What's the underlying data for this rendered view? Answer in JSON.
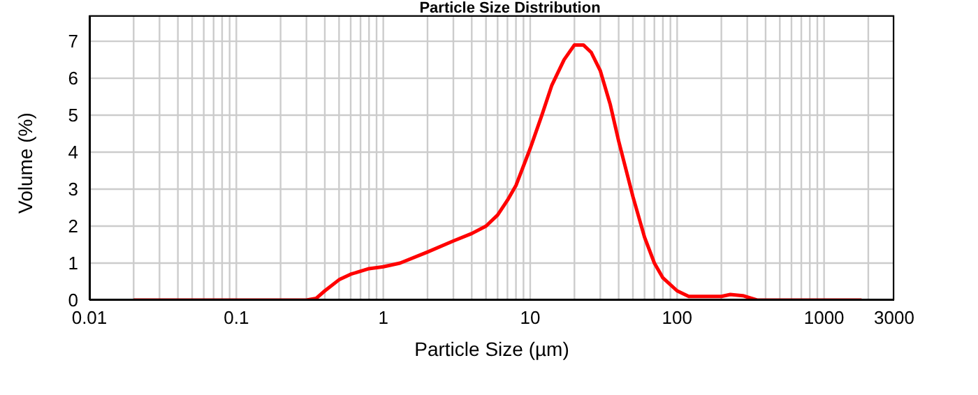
{
  "chart_data": {
    "type": "line",
    "title": "Particle Size Distribution",
    "xlabel": "Particle Size (µm)",
    "ylabel": "Volume (%)",
    "log": "x",
    "grid": true,
    "marker": "none",
    "line_style": "solid",
    "x": [
      0.02,
      0.1,
      0.3,
      0.35,
      0.4,
      0.5,
      0.6,
      0.8,
      1,
      1.3,
      2,
      3,
      4,
      5,
      6,
      7,
      8,
      10,
      12,
      14,
      17,
      20,
      23,
      26,
      30,
      35,
      40,
      50,
      60,
      70,
      80,
      100,
      120,
      200,
      230,
      280,
      320,
      350,
      1000,
      1800
    ],
    "series": [
      {
        "color": "#ff0000",
        "values": [
          0,
          0,
          0,
          0.05,
          0.25,
          0.55,
          0.7,
          0.85,
          0.9,
          1.0,
          1.3,
          1.6,
          1.8,
          2.0,
          2.3,
          2.7,
          3.1,
          4.1,
          5.0,
          5.8,
          6.5,
          6.9,
          6.9,
          6.7,
          6.2,
          5.3,
          4.3,
          2.8,
          1.7,
          1.0,
          0.6,
          0.25,
          0.1,
          0.1,
          0.15,
          0.12,
          0.05,
          0,
          0,
          0
        ]
      }
    ],
    "xlim": [
      0.01,
      3000
    ],
    "xticks": [
      0.01,
      {
        "value": 0.02,
        "label": null
      },
      {
        "value": 0.03,
        "label": null
      },
      {
        "value": 0.04,
        "label": null
      },
      {
        "value": 0.05,
        "label": null
      },
      {
        "value": 0.06,
        "label": null
      },
      {
        "value": 0.07,
        "label": null
      },
      {
        "value": 0.08,
        "label": null
      },
      {
        "value": 0.09,
        "label": null
      },
      0.1,
      {
        "value": 0.2,
        "label": null
      },
      {
        "value": 0.3,
        "label": null
      },
      {
        "value": 0.4,
        "label": null
      },
      {
        "value": 0.5,
        "label": null
      },
      {
        "value": 0.6,
        "label": null
      },
      {
        "value": 0.7,
        "label": null
      },
      {
        "value": 0.8,
        "label": null
      },
      {
        "value": 0.9,
        "label": null
      },
      1,
      {
        "value": 2,
        "label": null
      },
      {
        "value": 3,
        "label": null
      },
      {
        "value": 4,
        "label": null
      },
      {
        "value": 5,
        "label": null
      },
      {
        "value": 6,
        "label": null
      },
      {
        "value": 7,
        "label": null
      },
      {
        "value": 8,
        "label": null
      },
      {
        "value": 9,
        "label": null
      },
      10,
      {
        "value": 20,
        "label": null
      },
      {
        "value": 30,
        "label": null
      },
      {
        "value": 40,
        "label": null
      },
      {
        "value": 50,
        "label": null
      },
      {
        "value": 60,
        "label": null
      },
      {
        "value": 70,
        "label": null
      },
      {
        "value": 80,
        "label": null
      },
      {
        "value": 90,
        "label": null
      },
      100,
      {
        "value": 200,
        "label": null
      },
      {
        "value": 300,
        "label": null
      },
      {
        "value": 400,
        "label": null
      },
      {
        "value": 500,
        "label": null
      },
      {
        "value": 600,
        "label": null
      },
      {
        "value": 700,
        "label": null
      },
      {
        "value": 800,
        "label": null
      },
      {
        "value": 900,
        "label": null
      },
      1000,
      {
        "value": 2000,
        "label": null
      },
      3000
    ],
    "ylim": [
      0,
      7.7
    ],
    "yticks": [
      0,
      1,
      2,
      3,
      4,
      5,
      6,
      7
    ]
  }
}
